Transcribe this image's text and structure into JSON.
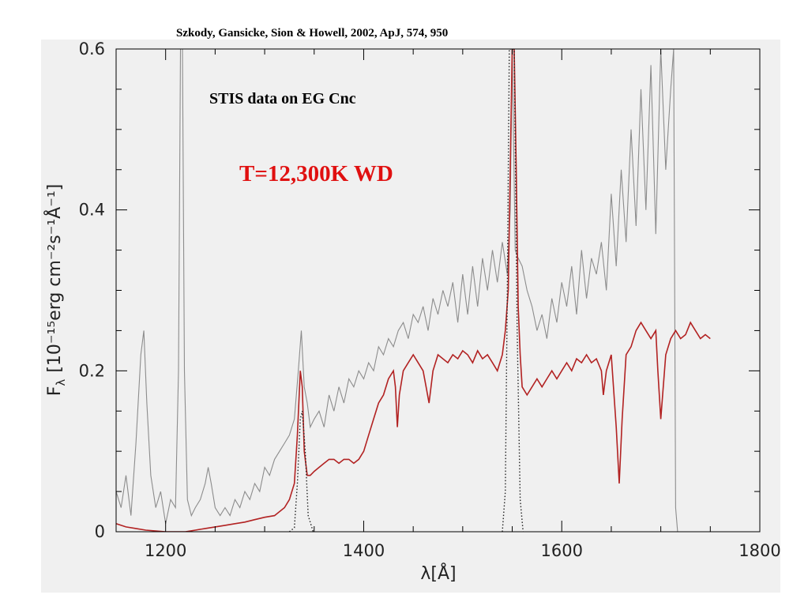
{
  "citation": "Szkody, Gansicke, Sion & Howell, 2002, ApJ, 574, 950",
  "chart_data": {
    "type": "line",
    "title": "STIS data on EG Cnc",
    "annotation": "T=12,300K WD",
    "xlabel": "λ[Å]",
    "ylabel": "F",
    "ylabel_sub": "λ",
    "ylabel_units": "[10⁻¹⁵erg cm⁻²s⁻¹Å⁻¹]",
    "xlim": [
      1150,
      1800
    ],
    "ylim": [
      0,
      0.6
    ],
    "x_ticks": [
      {
        "value": 1200,
        "label": "1200"
      },
      {
        "value": 1400,
        "label": "1400"
      },
      {
        "value": 1600,
        "label": "1600"
      },
      {
        "value": 1800,
        "label": "1800"
      }
    ],
    "y_ticks": [
      {
        "value": 0,
        "label": "0"
      },
      {
        "value": 0.2,
        "label": "0.2"
      },
      {
        "value": 0.4,
        "label": "0.4"
      },
      {
        "value": 0.6,
        "label": "0.6"
      }
    ],
    "colors": {
      "background": "#f0f0f0",
      "observed": "#8c8c8c",
      "model": "#b22222",
      "annotation": "#e01010",
      "dotted": "#222222"
    },
    "series": [
      {
        "key": "observed",
        "style": "solid-gray",
        "x": [
          1150,
          1155,
          1160,
          1165,
          1170,
          1175,
          1178,
          1181,
          1185,
          1190,
          1195,
          1200,
          1205,
          1210,
          1213,
          1215,
          1216,
          1217,
          1219,
          1222,
          1226,
          1230,
          1235,
          1240,
          1243,
          1246,
          1250,
          1255,
          1260,
          1265,
          1270,
          1275,
          1280,
          1285,
          1290,
          1295,
          1300,
          1305,
          1310,
          1315,
          1320,
          1325,
          1330,
          1334,
          1337,
          1340,
          1343,
          1346,
          1350,
          1355,
          1360,
          1365,
          1370,
          1375,
          1380,
          1385,
          1390,
          1395,
          1400,
          1405,
          1410,
          1415,
          1420,
          1425,
          1430,
          1435,
          1440,
          1445,
          1450,
          1455,
          1460,
          1465,
          1470,
          1475,
          1480,
          1485,
          1490,
          1495,
          1500,
          1505,
          1510,
          1515,
          1520,
          1525,
          1530,
          1535,
          1540,
          1545,
          1548,
          1550,
          1553,
          1556,
          1560,
          1565,
          1570,
          1575,
          1580,
          1585,
          1590,
          1595,
          1600,
          1605,
          1610,
          1615,
          1620,
          1625,
          1630,
          1635,
          1640,
          1645,
          1650,
          1655,
          1660,
          1665,
          1670,
          1675,
          1680,
          1685,
          1690,
          1695,
          1700,
          1705,
          1710,
          1713,
          1715,
          1717
        ],
        "y": [
          0.05,
          0.03,
          0.07,
          0.02,
          0.11,
          0.22,
          0.25,
          0.16,
          0.07,
          0.03,
          0.05,
          0.01,
          0.04,
          0.03,
          0.2,
          0.6,
          0.6,
          0.6,
          0.2,
          0.04,
          0.02,
          0.03,
          0.04,
          0.06,
          0.08,
          0.06,
          0.03,
          0.02,
          0.03,
          0.02,
          0.04,
          0.03,
          0.05,
          0.04,
          0.06,
          0.05,
          0.08,
          0.07,
          0.09,
          0.1,
          0.11,
          0.12,
          0.14,
          0.2,
          0.25,
          0.18,
          0.16,
          0.13,
          0.14,
          0.15,
          0.13,
          0.17,
          0.15,
          0.18,
          0.16,
          0.19,
          0.18,
          0.2,
          0.19,
          0.21,
          0.2,
          0.23,
          0.22,
          0.24,
          0.23,
          0.25,
          0.26,
          0.24,
          0.27,
          0.26,
          0.28,
          0.25,
          0.29,
          0.27,
          0.3,
          0.28,
          0.31,
          0.26,
          0.32,
          0.27,
          0.33,
          0.28,
          0.34,
          0.3,
          0.35,
          0.31,
          0.36,
          0.32,
          0.4,
          0.6,
          0.35,
          0.34,
          0.33,
          0.3,
          0.28,
          0.25,
          0.27,
          0.24,
          0.29,
          0.26,
          0.31,
          0.28,
          0.33,
          0.27,
          0.35,
          0.29,
          0.34,
          0.32,
          0.36,
          0.3,
          0.42,
          0.33,
          0.45,
          0.36,
          0.5,
          0.38,
          0.55,
          0.4,
          0.58,
          0.37,
          0.6,
          0.45,
          0.55,
          0.6,
          0.03,
          0.0
        ]
      },
      {
        "key": "model",
        "style": "solid-red",
        "x": [
          1150,
          1160,
          1170,
          1180,
          1190,
          1200,
          1210,
          1220,
          1230,
          1240,
          1250,
          1260,
          1270,
          1280,
          1290,
          1300,
          1310,
          1320,
          1325,
          1330,
          1333,
          1336,
          1338,
          1340,
          1343,
          1346,
          1350,
          1355,
          1360,
          1365,
          1370,
          1375,
          1380,
          1385,
          1390,
          1395,
          1400,
          1405,
          1410,
          1415,
          1420,
          1425,
          1430,
          1432,
          1434,
          1436,
          1440,
          1445,
          1450,
          1455,
          1460,
          1463,
          1466,
          1470,
          1475,
          1480,
          1485,
          1490,
          1495,
          1500,
          1505,
          1510,
          1515,
          1520,
          1525,
          1530,
          1535,
          1540,
          1543,
          1546,
          1548,
          1550,
          1552,
          1554,
          1556,
          1558,
          1560,
          1565,
          1570,
          1575,
          1580,
          1585,
          1590,
          1595,
          1600,
          1605,
          1610,
          1615,
          1620,
          1625,
          1630,
          1635,
          1640,
          1642,
          1645,
          1650,
          1655,
          1658,
          1661,
          1665,
          1670,
          1675,
          1680,
          1685,
          1690,
          1695,
          1697,
          1700,
          1705,
          1710,
          1715,
          1720,
          1725,
          1730,
          1735,
          1740,
          1745,
          1750
        ],
        "y": [
          0.01,
          0.006,
          0.004,
          0.002,
          0.001,
          0.0,
          0.0,
          0.0,
          0.002,
          0.004,
          0.006,
          0.008,
          0.01,
          0.012,
          0.015,
          0.018,
          0.02,
          0.03,
          0.04,
          0.06,
          0.12,
          0.2,
          0.18,
          0.1,
          0.07,
          0.07,
          0.075,
          0.08,
          0.085,
          0.09,
          0.09,
          0.085,
          0.09,
          0.09,
          0.085,
          0.09,
          0.1,
          0.12,
          0.14,
          0.16,
          0.17,
          0.19,
          0.2,
          0.18,
          0.13,
          0.17,
          0.2,
          0.21,
          0.22,
          0.21,
          0.2,
          0.18,
          0.16,
          0.2,
          0.22,
          0.215,
          0.21,
          0.22,
          0.215,
          0.225,
          0.22,
          0.21,
          0.225,
          0.215,
          0.22,
          0.21,
          0.2,
          0.22,
          0.25,
          0.3,
          0.45,
          0.6,
          0.6,
          0.45,
          0.28,
          0.22,
          0.18,
          0.17,
          0.18,
          0.19,
          0.18,
          0.19,
          0.2,
          0.19,
          0.2,
          0.21,
          0.2,
          0.215,
          0.21,
          0.22,
          0.21,
          0.215,
          0.2,
          0.17,
          0.2,
          0.22,
          0.13,
          0.06,
          0.14,
          0.22,
          0.23,
          0.25,
          0.26,
          0.25,
          0.24,
          0.25,
          0.2,
          0.14,
          0.22,
          0.24,
          0.25,
          0.24,
          0.245,
          0.26,
          0.25,
          0.24,
          0.245,
          0.24
        ]
      },
      {
        "key": "dotted",
        "style": "dotted-black",
        "segments": [
          {
            "x": [
              1325,
              1330,
              1333,
              1336,
              1338,
              1341,
              1344,
              1349
            ],
            "y": [
              0.0,
              0.005,
              0.06,
              0.14,
              0.15,
              0.1,
              0.02,
              0.0
            ]
          },
          {
            "x": [
              1540,
              1543,
              1545,
              1547,
              1549,
              1552,
              1555,
              1558,
              1561
            ],
            "y": [
              0.0,
              0.05,
              0.3,
              0.6,
              0.6,
              0.6,
              0.25,
              0.04,
              0.0
            ]
          }
        ]
      }
    ]
  }
}
